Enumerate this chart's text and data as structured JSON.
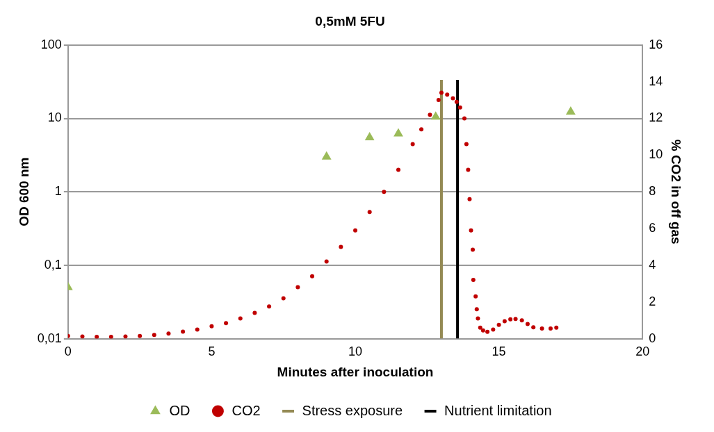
{
  "chart_data": {
    "type": "scatter",
    "title": "0,5mM 5FU",
    "xlabel": "Minutes after inoculation",
    "ylabel": "OD 600 nm",
    "y2label": "% CO2 in off gas",
    "xlim": [
      0,
      20
    ],
    "xticks": [
      0,
      5,
      10,
      15,
      20
    ],
    "ylim": [
      0.01,
      100
    ],
    "yticks": [
      {
        "value": 0.01,
        "label": "0,01"
      },
      {
        "value": 0.1,
        "label": "0,1"
      },
      1,
      10,
      100
    ],
    "log": "y",
    "y2lim": [
      0,
      16
    ],
    "y2ticks": [
      0,
      2,
      4,
      6,
      8,
      10,
      12,
      14,
      16
    ],
    "grid": "y",
    "legend": "bottom",
    "series": [
      {
        "name": "OD",
        "marker": "triangle",
        "color": "#9bbb59",
        "x": [
          0,
          9,
          10.5,
          11.5,
          12.8,
          17.5
        ],
        "values": [
          0.05,
          3,
          5.5,
          6.2,
          10.5,
          12.3
        ]
      },
      {
        "name": "CO2",
        "marker": "circle",
        "axis": "y2",
        "color": "#c00000",
        "x": [
          0,
          0.5,
          1,
          1.5,
          2,
          2.5,
          3,
          3.5,
          4,
          4.5,
          5,
          5.5,
          6,
          6.5,
          7,
          7.5,
          8,
          8.5,
          9,
          9.5,
          10,
          10.5,
          11,
          11.5,
          12,
          12.3,
          12.6,
          12.9,
          13.0,
          13.2,
          13.4,
          13.53,
          13.65,
          13.8,
          13.87,
          13.93,
          13.98,
          14.03,
          14.09,
          14.11,
          14.19,
          14.23,
          14.27,
          14.35,
          14.45,
          14.6,
          14.8,
          15.0,
          15.2,
          15.4,
          15.58,
          15.8,
          16.0,
          16.2,
          16.5,
          16.8,
          17.0
        ],
        "values": [
          0.15,
          0.12,
          0.1,
          0.1,
          0.12,
          0.15,
          0.2,
          0.28,
          0.38,
          0.5,
          0.68,
          0.85,
          1.1,
          1.4,
          1.75,
          2.2,
          2.8,
          3.4,
          4.2,
          5.0,
          5.9,
          6.9,
          8.0,
          9.2,
          10.6,
          11.4,
          12.2,
          13.0,
          13.4,
          13.3,
          13.1,
          12.9,
          12.6,
          12.0,
          10.6,
          9.2,
          7.6,
          5.9,
          4.85,
          3.2,
          2.3,
          1.6,
          1.1,
          0.6,
          0.45,
          0.37,
          0.5,
          0.75,
          0.95,
          1.05,
          1.07,
          1.0,
          0.8,
          0.62,
          0.55,
          0.55,
          0.6
        ]
      },
      {
        "name": "Stress exposure",
        "type": "line",
        "marker": "none",
        "axis": "y2",
        "color": "#948a54",
        "x": [
          13,
          13
        ],
        "values": [
          0,
          14.1
        ]
      },
      {
        "name": "Nutrient limitation",
        "type": "line",
        "marker": "none",
        "axis": "y2",
        "color": "#000000",
        "x": [
          13.56,
          13.56
        ],
        "values": [
          0,
          14.1
        ]
      }
    ]
  }
}
